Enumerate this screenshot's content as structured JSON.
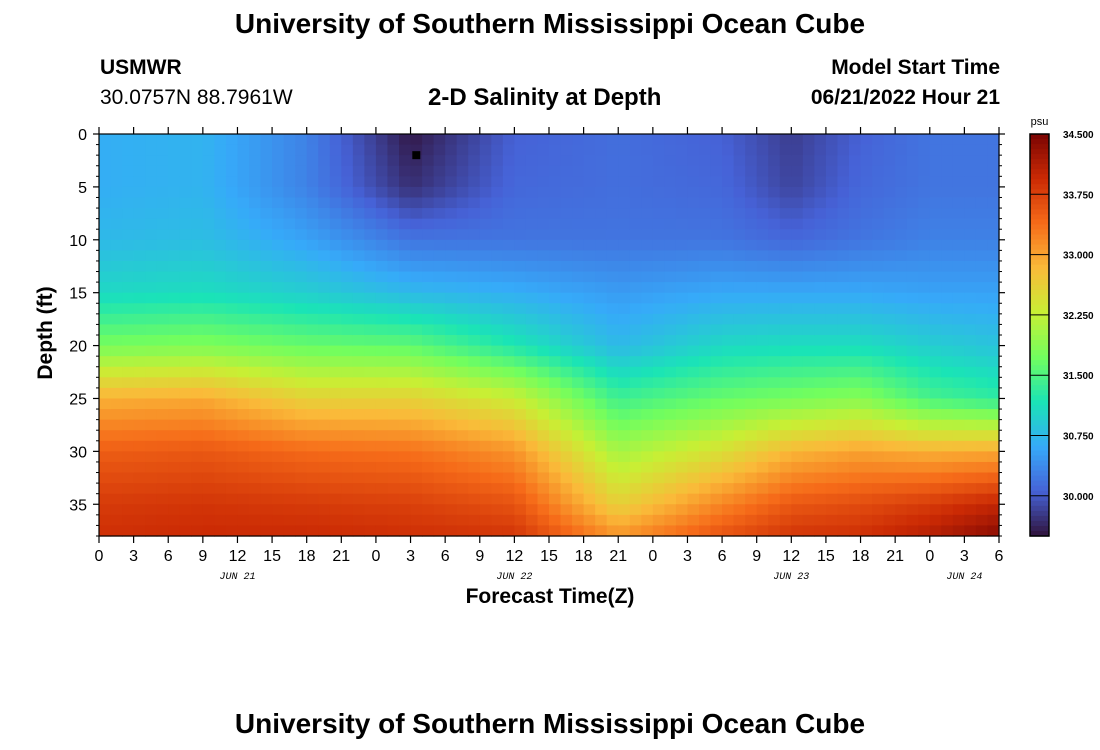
{
  "header": {
    "title": "University of Southern Mississippi Ocean Cube",
    "station": "USMWR",
    "coords": "30.0757N  88.7961W",
    "subtitle": "2-D Salinity at Depth",
    "model_start_label": "Model Start Time",
    "model_start_value": "06/21/2022 Hour 21"
  },
  "footer": {
    "title": "University of Southern Mississippi Ocean Cube"
  },
  "chart_data": {
    "type": "heatmap",
    "title": "2-D Salinity at Depth",
    "xlabel": "Forecast Time(Z)",
    "ylabel": "Depth (ft)",
    "x_ticks": [
      "0",
      "3",
      "6",
      "9",
      "12",
      "15",
      "18",
      "21",
      "0",
      "3",
      "6",
      "9",
      "12",
      "15",
      "18",
      "21",
      "0",
      "3",
      "6",
      "9",
      "12",
      "15",
      "18",
      "21",
      "0",
      "3",
      "6"
    ],
    "x_day_labels": [
      {
        "label": "JUN 21",
        "at_tick": 4
      },
      {
        "label": "JUN 22",
        "at_tick": 12
      },
      {
        "label": "JUN 23",
        "at_tick": 20
      },
      {
        "label": "JUN 24",
        "at_tick": 25
      }
    ],
    "y_ticks": [
      "0",
      "5",
      "10",
      "15",
      "20",
      "25",
      "30",
      "35"
    ],
    "y_range": [
      0,
      38
    ],
    "y_reversed": true,
    "x_range_hours": [
      0,
      78
    ],
    "colorbar": {
      "unit": "psu",
      "range": [
        29.5,
        34.5
      ],
      "tick_values": [
        34.5,
        33.75,
        33.0,
        32.25,
        31.5,
        30.75,
        30.0
      ],
      "tick_labels": [
        "34.500",
        "33.750",
        "33.000",
        "32.250",
        "31.500",
        "30.750",
        "30.000"
      ],
      "colormap": [
        "#30123b",
        "#4662d7",
        "#36aaf9",
        "#1ae4b6",
        "#72fe5e",
        "#c8ef34",
        "#faba39",
        "#f66b19",
        "#cb2a04",
        "#7a0403"
      ]
    },
    "marker": {
      "hour": 27.5,
      "depth_ft": 2
    },
    "salinity_profiles": [
      {
        "hour": 0,
        "depth_ft": [
          0,
          5,
          10,
          15,
          20,
          25,
          30,
          35,
          38
        ],
        "psu": [
          30.65,
          30.65,
          30.75,
          31.05,
          31.75,
          32.9,
          33.5,
          33.8,
          33.9
        ]
      },
      {
        "hour": 9,
        "depth_ft": [
          0,
          5,
          10,
          15,
          20,
          25,
          30,
          35,
          38
        ],
        "psu": [
          30.7,
          30.7,
          30.8,
          31.1,
          31.8,
          32.95,
          33.55,
          33.85,
          33.95
        ]
      },
      {
        "hour": 18,
        "depth_ft": [
          0,
          5,
          10,
          15,
          20,
          25,
          30,
          35,
          38
        ],
        "psu": [
          30.3,
          30.3,
          30.55,
          30.95,
          31.65,
          32.6,
          33.4,
          33.8,
          33.95
        ]
      },
      {
        "hour": 27,
        "depth_ft": [
          0,
          5,
          10,
          15,
          20,
          25,
          30,
          35,
          38
        ],
        "psu": [
          29.55,
          29.7,
          30.2,
          30.75,
          31.6,
          32.6,
          33.35,
          33.75,
          33.9
        ]
      },
      {
        "hour": 36,
        "depth_ft": [
          0,
          5,
          10,
          15,
          20,
          25,
          30,
          35,
          38
        ],
        "psu": [
          30.05,
          30.1,
          30.2,
          30.65,
          31.2,
          32.3,
          33.1,
          33.6,
          33.85
        ]
      },
      {
        "hour": 45,
        "depth_ft": [
          0,
          5,
          10,
          15,
          20,
          25,
          30,
          35,
          38
        ],
        "psu": [
          30.15,
          30.15,
          30.2,
          30.5,
          30.75,
          31.4,
          32.05,
          32.6,
          33.1
        ]
      },
      {
        "hour": 54,
        "depth_ft": [
          0,
          5,
          10,
          15,
          20,
          25,
          30,
          35,
          38
        ],
        "psu": [
          30.05,
          30.1,
          30.2,
          30.6,
          31.05,
          31.65,
          32.45,
          33.2,
          33.6
        ]
      },
      {
        "hour": 60,
        "depth_ft": [
          0,
          5,
          10,
          15,
          20,
          25,
          30,
          35,
          38
        ],
        "psu": [
          29.8,
          29.85,
          30.1,
          30.6,
          31.1,
          31.75,
          32.85,
          33.55,
          33.85
        ]
      },
      {
        "hour": 66,
        "depth_ft": [
          0,
          5,
          10,
          15,
          20,
          25,
          30,
          35,
          38
        ],
        "psu": [
          30.05,
          30.1,
          30.2,
          30.6,
          31.1,
          31.85,
          33.0,
          33.65,
          33.9
        ]
      },
      {
        "hour": 72,
        "depth_ft": [
          0,
          5,
          10,
          15,
          20,
          25,
          30,
          35,
          38
        ],
        "psu": [
          30.2,
          30.2,
          30.3,
          30.55,
          30.95,
          31.45,
          32.9,
          33.8,
          34.1
        ]
      },
      {
        "hour": 78,
        "depth_ft": [
          0,
          5,
          10,
          15,
          20,
          25,
          30,
          35,
          38
        ],
        "psu": [
          30.2,
          30.2,
          30.3,
          30.55,
          30.85,
          31.3,
          32.95,
          34.0,
          34.4
        ]
      }
    ]
  }
}
